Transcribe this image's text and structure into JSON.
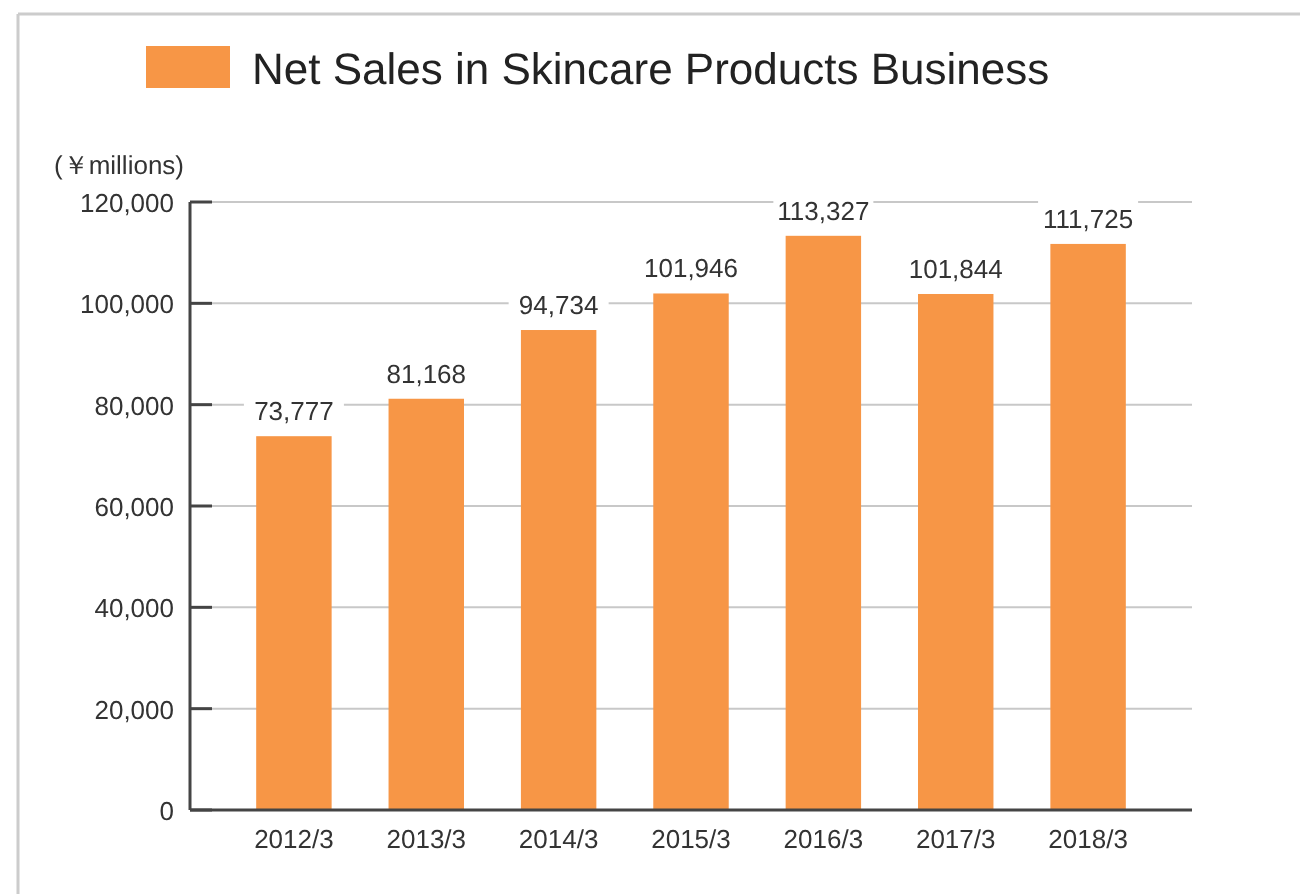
{
  "chart_data": {
    "type": "bar",
    "ylabel": "(￥millions)",
    "categories": [
      "2012/3",
      "2013/3",
      "2014/3",
      "2015/3",
      "2016/3",
      "2017/3",
      "2018/3"
    ],
    "series": [
      {
        "name": "Net Sales in Skincare Products Business",
        "color": "#f79646",
        "values": [
          73777,
          81168,
          94734,
          101946,
          113327,
          101844,
          111725
        ],
        "value_labels": [
          "73,777",
          "81,168",
          "94,734",
          "101,946",
          "113,327",
          "101,844",
          "111,725"
        ]
      }
    ],
    "ylim": [
      0,
      120000
    ],
    "yticks": [
      {
        "value": 0,
        "label": "0"
      },
      {
        "value": 20000,
        "label": "20,000"
      },
      {
        "value": 40000,
        "label": "40,000"
      },
      {
        "value": 60000,
        "label": "60,000"
      },
      {
        "value": 80000,
        "label": "80,000"
      },
      {
        "value": 100000,
        "label": "100,000"
      },
      {
        "value": 120000,
        "label": "120,000"
      }
    ],
    "grid": "y",
    "legend": "top"
  }
}
